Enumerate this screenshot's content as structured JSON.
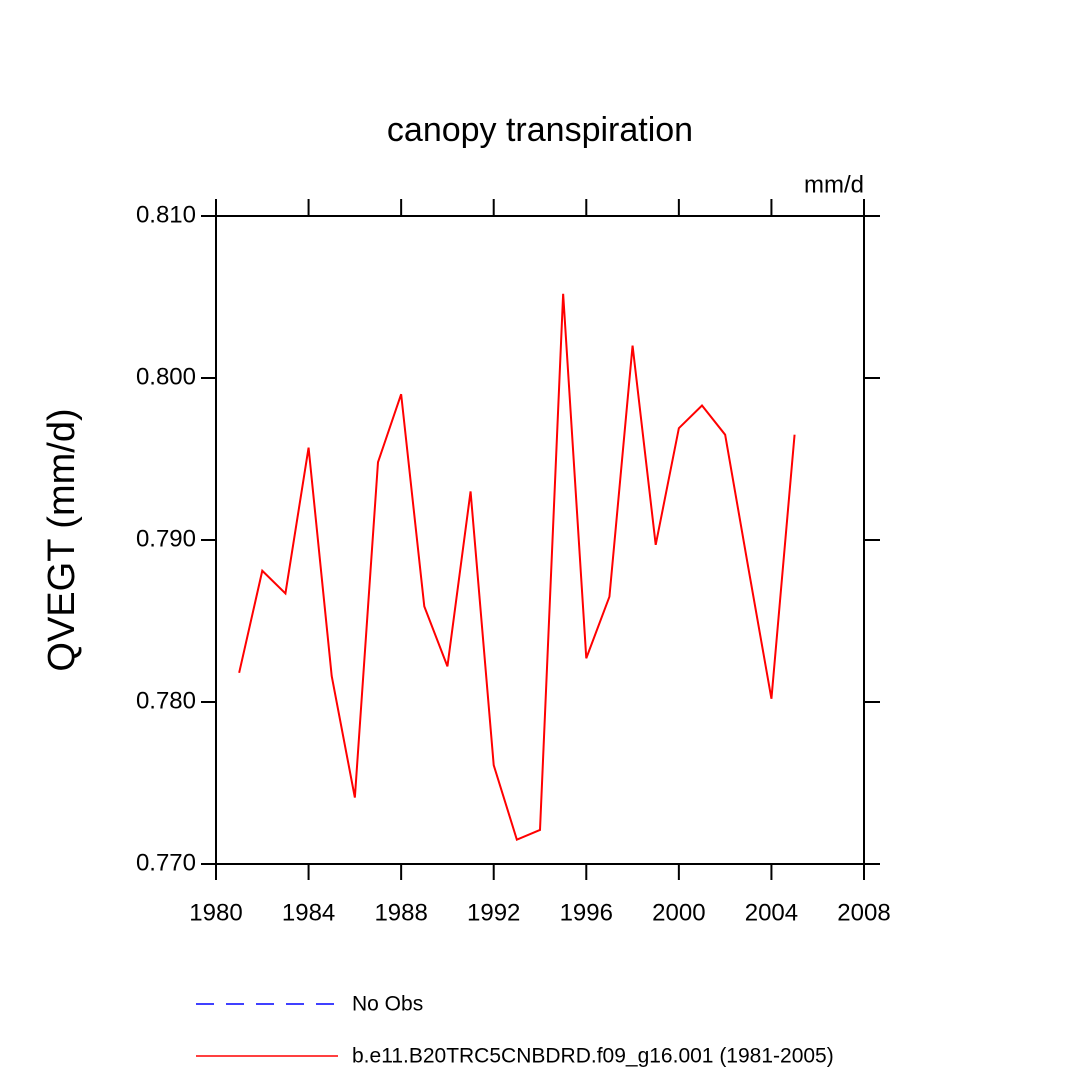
{
  "chart_data": {
    "type": "line",
    "title": "canopy transpiration",
    "units": "mm/d",
    "ylabel": "QVEGT  (mm/d)",
    "x": [
      1981,
      1982,
      1983,
      1984,
      1985,
      1986,
      1987,
      1988,
      1989,
      1990,
      1991,
      1992,
      1993,
      1994,
      1995,
      1996,
      1997,
      1998,
      1999,
      2000,
      2001,
      2002,
      2003,
      2004,
      2005
    ],
    "series": [
      {
        "name": "No Obs",
        "color": "#0000ff",
        "dashed": true,
        "values": [
          null,
          null,
          null,
          null,
          null,
          null,
          null,
          null,
          null,
          null,
          null,
          null,
          null,
          null,
          null,
          null,
          null,
          null,
          null,
          null,
          null,
          null,
          null,
          null,
          null
        ]
      },
      {
        "name": "b.e11.B20TRC5CNBDRD.f09_g16.001 (1981-2005)",
        "color": "#ff0000",
        "dashed": false,
        "values": [
          0.7818,
          0.7881,
          0.7867,
          0.7957,
          0.7816,
          0.7741,
          0.7948,
          0.799,
          0.7859,
          0.7822,
          0.793,
          0.7761,
          0.7715,
          0.7721,
          0.8052,
          0.7827,
          0.7865,
          0.802,
          0.7897,
          0.7969,
          0.7983,
          0.7965,
          0.7883,
          0.7802,
          0.7965
        ]
      }
    ],
    "xlim": [
      1980,
      2008
    ],
    "xticks": [
      1980,
      1984,
      1988,
      1992,
      1996,
      2000,
      2004,
      2008
    ],
    "ylim": [
      0.77,
      0.81
    ],
    "yticks": [
      {
        "value": 0.77,
        "label": "0.770"
      },
      {
        "value": 0.78,
        "label": "0.780"
      },
      {
        "value": 0.79,
        "label": "0.790"
      },
      {
        "value": 0.8,
        "label": "0.800"
      },
      {
        "value": 0.81,
        "label": "0.810"
      }
    ],
    "grid": false
  }
}
